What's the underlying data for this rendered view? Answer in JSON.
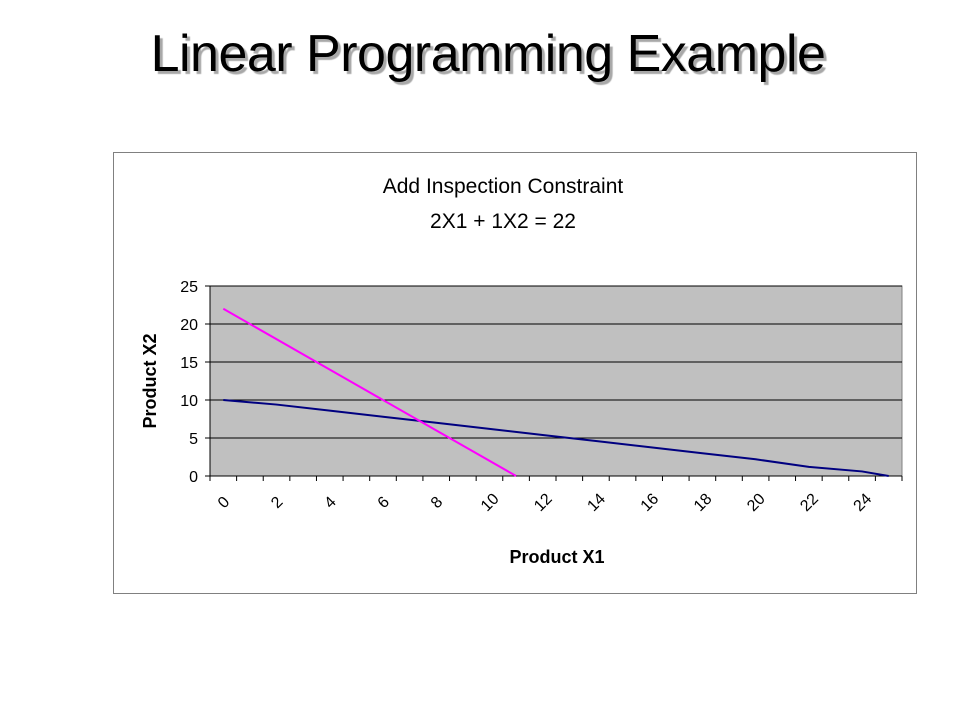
{
  "slide": {
    "title": "Linear Programming Example"
  },
  "chart_data": {
    "type": "line",
    "title": "Add Inspection Constraint",
    "subtitle": "2X1 + 1X2 = 22",
    "xlabel": "Product X1",
    "ylabel": "Product X2",
    "x_tick_labels": [
      "0",
      "2",
      "4",
      "6",
      "8",
      "10",
      "12",
      "14",
      "16",
      "18",
      "20",
      "22",
      "24"
    ],
    "y_tick_labels": [
      "0",
      "5",
      "10",
      "15",
      "20",
      "25"
    ],
    "xlim": [
      0,
      26
    ],
    "ylim": [
      0,
      25
    ],
    "grid": true,
    "plot_background": "#c0c0c0",
    "series": [
      {
        "color": "#000080",
        "x": [
          0,
          2,
          4,
          6,
          8,
          10,
          12,
          14,
          16,
          18,
          20,
          22,
          24,
          25
        ],
        "y": [
          10,
          9.4,
          8.6,
          7.8,
          7.0,
          6.2,
          5.4,
          4.6,
          3.8,
          3.0,
          2.2,
          1.2,
          0.6,
          0
        ]
      },
      {
        "color": "#ff00ff",
        "x": [
          0,
          11
        ],
        "y": [
          22,
          0
        ]
      }
    ]
  }
}
